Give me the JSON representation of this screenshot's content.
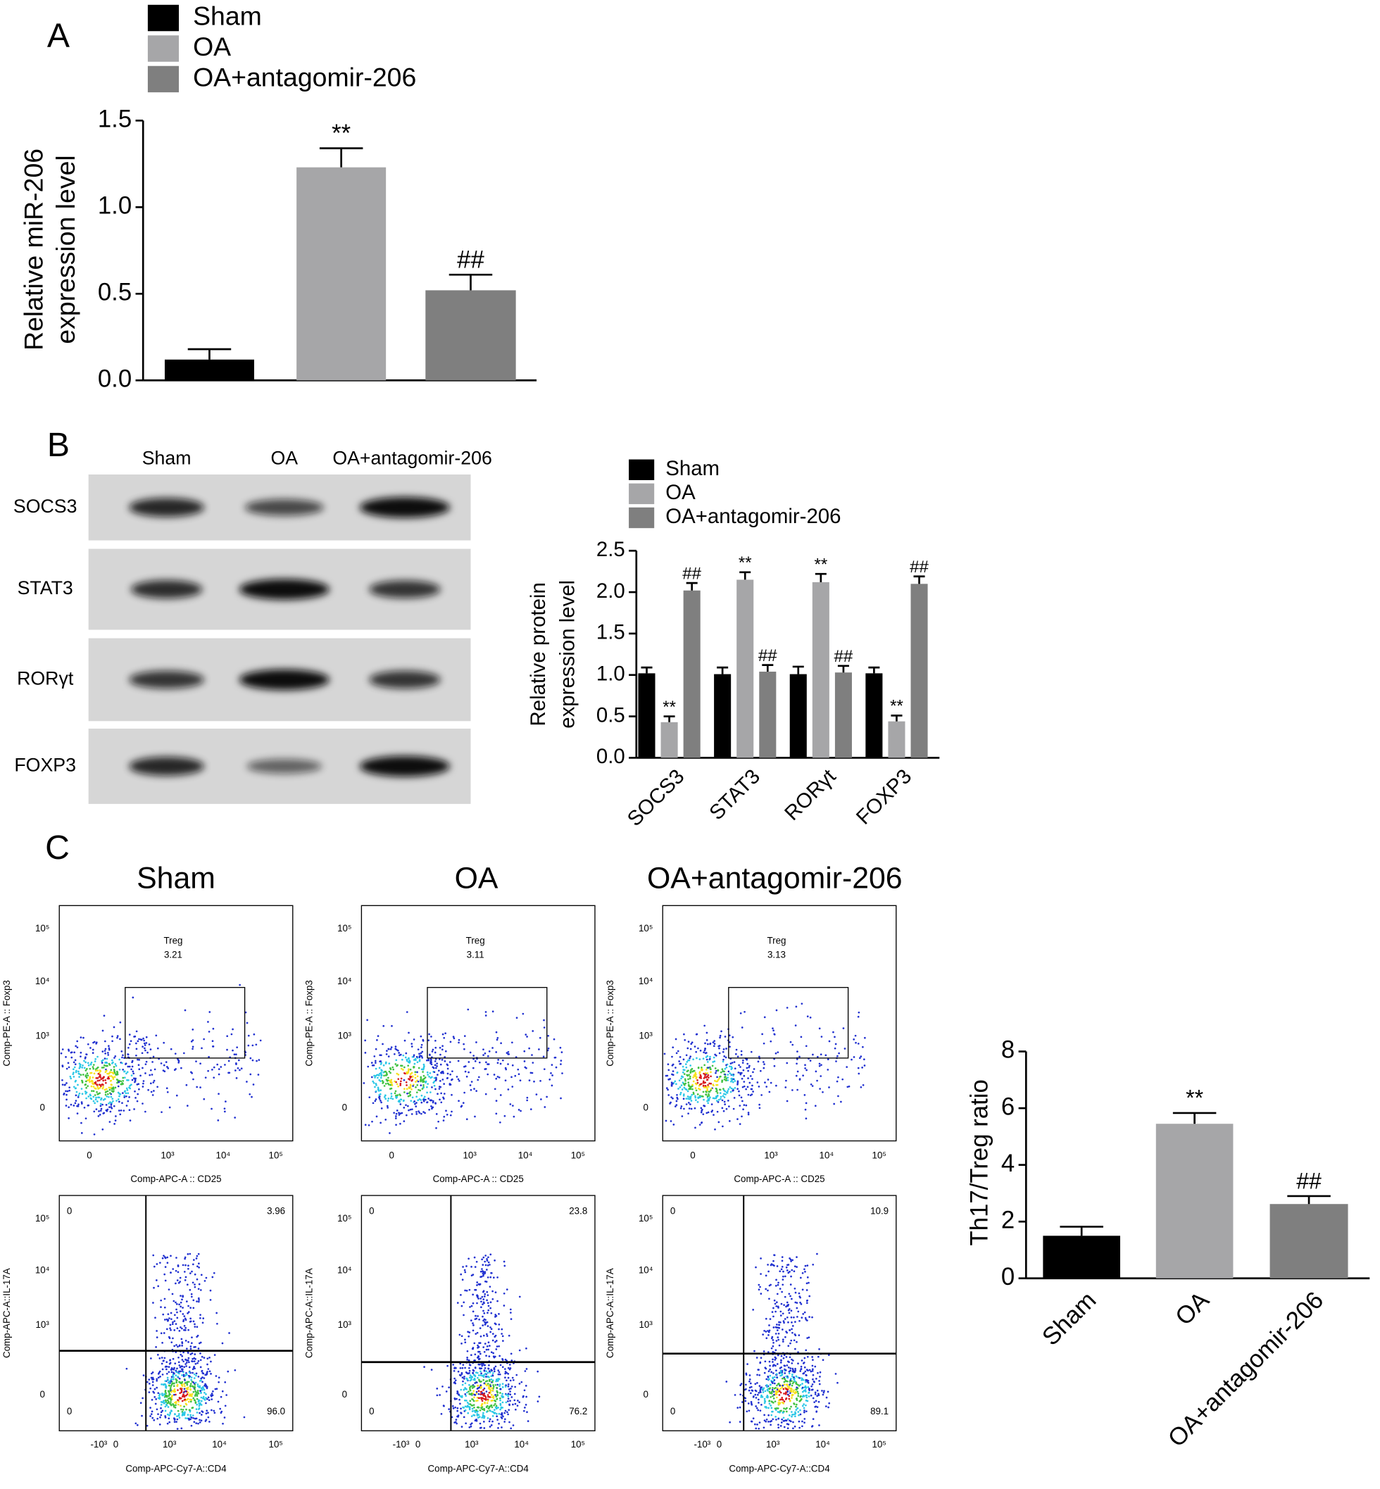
{
  "panels": [
    "A",
    "B",
    "C"
  ],
  "chart_data": [
    {
      "type": "bar",
      "categories": [
        "Sham",
        "OA",
        "OA+antagomir-206"
      ],
      "values": [
        0.12,
        1.23,
        0.52
      ],
      "errors": [
        0.06,
        0.11,
        0.09
      ],
      "colors": [
        "#000000",
        "#a6a6a8",
        "#7f7f7f"
      ],
      "y_label": [
        "Relative miR-206",
        "expression level"
      ],
      "ylim": [
        0,
        1.5
      ],
      "yticks": [
        {
          "value": 0,
          "label": "0.0"
        },
        {
          "value": 0.5,
          "label": "0.5"
        },
        {
          "value": 1,
          "label": "1.0"
        },
        {
          "value": 1.5,
          "label": "1.5"
        }
      ],
      "annotations": [
        null,
        "**",
        "##"
      ],
      "legend": "top-left"
    },
    {
      "type": "grouped_bar",
      "categories": [
        "SOCS3",
        "STAT3",
        "RORγt",
        "FOXP3"
      ],
      "series": [
        {
          "name": "Sham",
          "color": "#000000",
          "values": [
            1.02,
            1.01,
            1.01,
            1.02
          ],
          "errors": [
            0.07,
            0.08,
            0.09,
            0.07
          ]
        },
        {
          "name": "OA",
          "color": "#a6a6a8",
          "values": [
            0.43,
            2.15,
            2.12,
            0.44
          ],
          "errors": [
            0.07,
            0.09,
            0.1,
            0.07
          ],
          "annotations": [
            "**",
            "**",
            "**",
            "**"
          ]
        },
        {
          "name": "OA+antagomir-206",
          "color": "#7f7f7f",
          "values": [
            2.02,
            1.04,
            1.03,
            2.1
          ],
          "errors": [
            0.09,
            0.08,
            0.08,
            0.09
          ],
          "annotations": [
            "##",
            "##",
            "##",
            "##"
          ]
        }
      ],
      "y_label": [
        "Relative protein",
        "expression level"
      ],
      "ylim": [
        0,
        2.5
      ],
      "yticks": [
        {
          "value": 0,
          "label": "0.0"
        },
        {
          "value": 0.5,
          "label": "0.5"
        },
        {
          "value": 1,
          "label": "1.0"
        },
        {
          "value": 1.5,
          "label": "1.5"
        },
        {
          "value": 2,
          "label": "2.0"
        },
        {
          "value": 2.5,
          "label": "2.5"
        }
      ],
      "legend": "top-left"
    },
    {
      "type": "bar",
      "categories": [
        "Sham",
        "OA",
        "OA+antagomir-206"
      ],
      "values": [
        1.5,
        5.45,
        2.62
      ],
      "errors": [
        0.32,
        0.38,
        0.28
      ],
      "colors": [
        "#000000",
        "#a6a6a8",
        "#7f7f7f"
      ],
      "y_label": [
        "Th17/Treg ratio"
      ],
      "ylim": [
        0,
        8
      ],
      "yticks": [
        0,
        2,
        4,
        6,
        8
      ],
      "annotations": [
        null,
        "**",
        "##"
      ]
    }
  ],
  "blot": {
    "lanes": [
      "Sham",
      "OA",
      "OA+antagomir-206"
    ],
    "rows": [
      "SOCS3",
      "STAT3",
      "RORγt",
      "FOXP3"
    ]
  },
  "flow": {
    "titles": [
      "Sham",
      "OA",
      "OA+antagomir-206"
    ],
    "treg": {
      "gate": "Treg",
      "values": [
        "3.21",
        "3.11",
        "3.13"
      ],
      "x_label": "Comp-APC-A :: CD25",
      "y_label": "Comp-PE-A :: Foxp3",
      "xticks": [
        "0",
        "10³",
        "10⁴",
        "10⁵"
      ],
      "yticks": [
        "10⁵",
        "10⁴",
        "10³",
        "0"
      ]
    },
    "th17": {
      "x_label": "Comp-APC-Cy7-A::CD4",
      "y_label": "Comp-APC-A::IL-17A",
      "xticks": [
        "-10³",
        "0",
        "10³",
        "10⁴",
        "10⁵"
      ],
      "yticks": [
        "10⁵",
        "10⁴",
        "10³",
        "0"
      ],
      "quadrants": [
        [
          "0",
          "3.96",
          "0",
          "96.0"
        ],
        [
          "0",
          "23.8",
          "0",
          "76.2"
        ],
        [
          "0",
          "10.9",
          "0",
          "89.1"
        ]
      ]
    }
  }
}
